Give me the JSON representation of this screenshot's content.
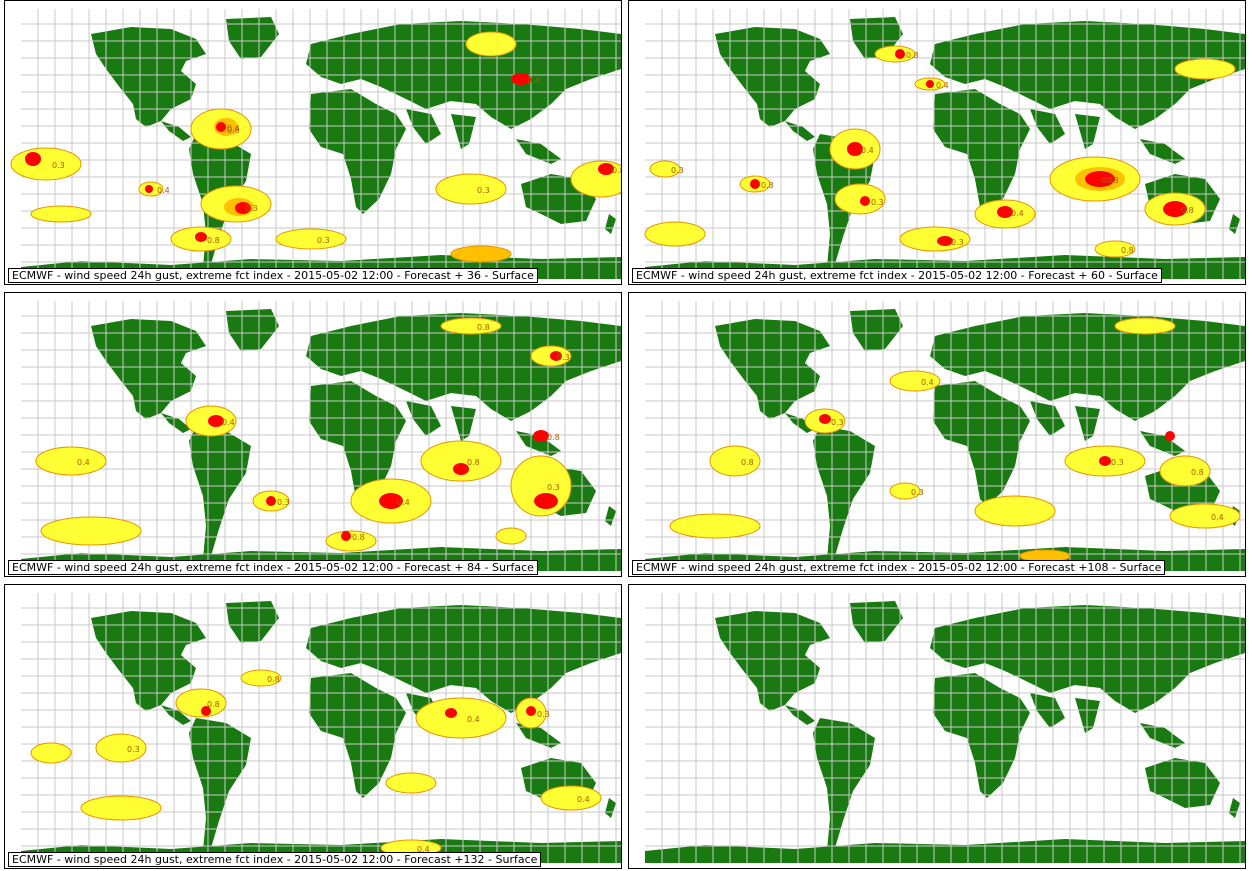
{
  "colors": {
    "land": "#1a7a12",
    "grid": "#c9c9c9",
    "level_low": "#ffff33",
    "level_mid": "#ffc000",
    "level_high": "#ff0000",
    "contour": "#e69500"
  },
  "contour_labels": [
    "0.3",
    "0.4",
    "0.8"
  ],
  "panels": [
    {
      "caption": "ECMWF - wind speed 24h gust, extreme fct index - 2015-05-02 12:00 - Forecast + 36 - Surface"
    },
    {
      "caption": "ECMWF - wind speed 24h gust, extreme fct index - 2015-05-02 12:00 - Forecast + 60 - Surface"
    },
    {
      "caption": "ECMWF - wind speed 24h gust, extreme fct index - 2015-05-02 12:00 - Forecast + 84 - Surface"
    },
    {
      "caption": "ECMWF - wind speed 24h gust, extreme fct index - 2015-05-02 12:00 - Forecast +108 - Surface"
    },
    {
      "caption": "ECMWF - wind speed 24h gust, extreme fct index - 2015-05-02 12:00 - Forecast +132 - Surface"
    },
    {
      "caption": ""
    }
  ]
}
